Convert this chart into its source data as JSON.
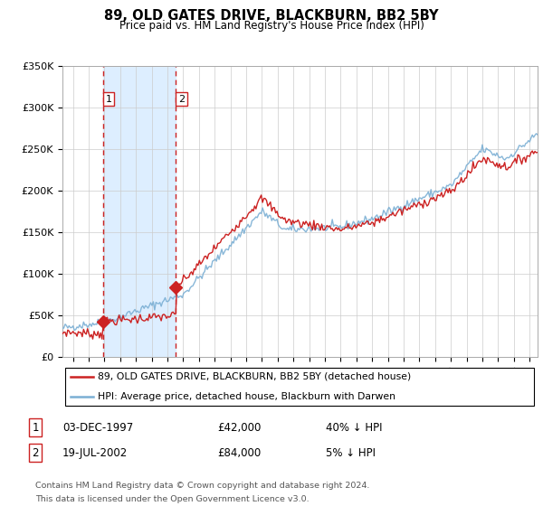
{
  "title": "89, OLD GATES DRIVE, BLACKBURN, BB2 5BY",
  "subtitle": "Price paid vs. HM Land Registry's House Price Index (HPI)",
  "ylim": [
    0,
    350000
  ],
  "xlim_start": 1995.33,
  "xlim_end": 2025.5,
  "sale1_date": 1997.92,
  "sale1_price": 42000,
  "sale2_date": 2002.54,
  "sale2_price": 84000,
  "hpi_color": "#7bafd4",
  "price_color": "#cc2222",
  "shade_color": "#ddeeff",
  "legend_line1": "89, OLD GATES DRIVE, BLACKBURN, BB2 5BY (detached house)",
  "legend_line2": "HPI: Average price, detached house, Blackburn with Darwen",
  "footnote1": "Contains HM Land Registry data © Crown copyright and database right 2024.",
  "footnote2": "This data is licensed under the Open Government Licence v3.0.",
  "background_color": "#ffffff",
  "grid_color": "#cccccc"
}
